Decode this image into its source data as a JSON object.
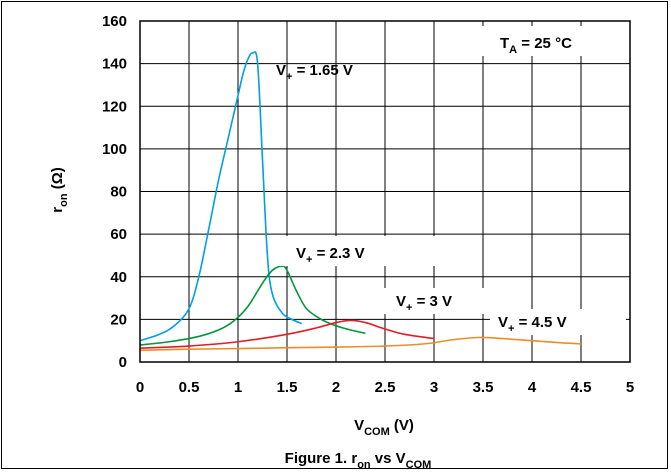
{
  "chart_data": {
    "type": "line",
    "title": "",
    "caption": {
      "prefix": "Figure 1. r",
      "sub1": "on",
      "mid": " vs V",
      "sub2": "COM"
    },
    "xlabel": {
      "main": "V",
      "sub": "COM",
      "unit": " (V)"
    },
    "ylabel": {
      "main": "r",
      "sub": "on",
      "unit": " (Ω)"
    },
    "xlim": [
      0,
      5
    ],
    "ylim": [
      0,
      160
    ],
    "xticks": [
      0,
      0.5,
      1,
      1.5,
      2,
      2.5,
      3,
      3.5,
      4,
      4.5,
      5
    ],
    "xtick_labels": [
      "0",
      "0.5",
      "1",
      "1.5",
      "2",
      "2.5",
      "3",
      "3.5",
      "4",
      "4.5",
      "5"
    ],
    "yticks": [
      0,
      20,
      40,
      60,
      80,
      100,
      120,
      140,
      160
    ],
    "ytick_labels": [
      "0",
      "20",
      "40",
      "60",
      "80",
      "100",
      "120",
      "140",
      "160"
    ],
    "grid": true,
    "temperature_note": {
      "main": "T",
      "sub": "A",
      "rest": " = 25 °C"
    },
    "series": [
      {
        "name": {
          "main": "V",
          "sub": "+",
          "rest": " = 1.65 V"
        },
        "color": "#00a0e0",
        "x": [
          0,
          0.2,
          0.35,
          0.5,
          0.6,
          0.7,
          0.8,
          0.9,
          1.0,
          1.05,
          1.1,
          1.15,
          1.2,
          1.25,
          1.3,
          1.35,
          1.45,
          1.55,
          1.65
        ],
        "y": [
          10,
          13,
          17,
          25,
          40,
          62,
          85,
          105,
          125,
          135,
          142,
          145,
          140,
          95,
          50,
          32,
          23,
          20,
          18
        ]
      },
      {
        "name": {
          "main": "V",
          "sub": "+",
          "rest": " = 2.3 V"
        },
        "color": "#00963c",
        "x": [
          0,
          0.3,
          0.6,
          0.8,
          0.95,
          1.1,
          1.25,
          1.35,
          1.45,
          1.5,
          1.6,
          1.7,
          1.85,
          2.0,
          2.15,
          2.3
        ],
        "y": [
          8,
          9.5,
          12,
          15,
          19,
          26,
          37,
          43,
          45,
          43,
          33,
          25,
          20,
          17,
          15,
          13.5
        ]
      },
      {
        "name": {
          "main": "V",
          "sub": "+",
          "rest": " = 3 V"
        },
        "color": "#e01e28",
        "x": [
          0,
          0.5,
          1.0,
          1.5,
          1.8,
          2.0,
          2.15,
          2.3,
          2.5,
          2.7,
          3.0
        ],
        "y": [
          6.5,
          7.5,
          9.5,
          13,
          16,
          18.5,
          19.5,
          18.5,
          15.5,
          13,
          11
        ]
      },
      {
        "name": {
          "main": "V",
          "sub": "+",
          "rest": " = 4.5 V"
        },
        "color": "#f08c28",
        "x": [
          0,
          0.5,
          1.0,
          1.5,
          2.0,
          2.5,
          2.9,
          3.2,
          3.45,
          3.7,
          4.0,
          4.3,
          4.5
        ],
        "y": [
          5.5,
          6,
          6.3,
          6.7,
          7,
          7.5,
          8.5,
          10.5,
          11.5,
          11,
          10,
          9,
          8.5
        ]
      }
    ]
  }
}
